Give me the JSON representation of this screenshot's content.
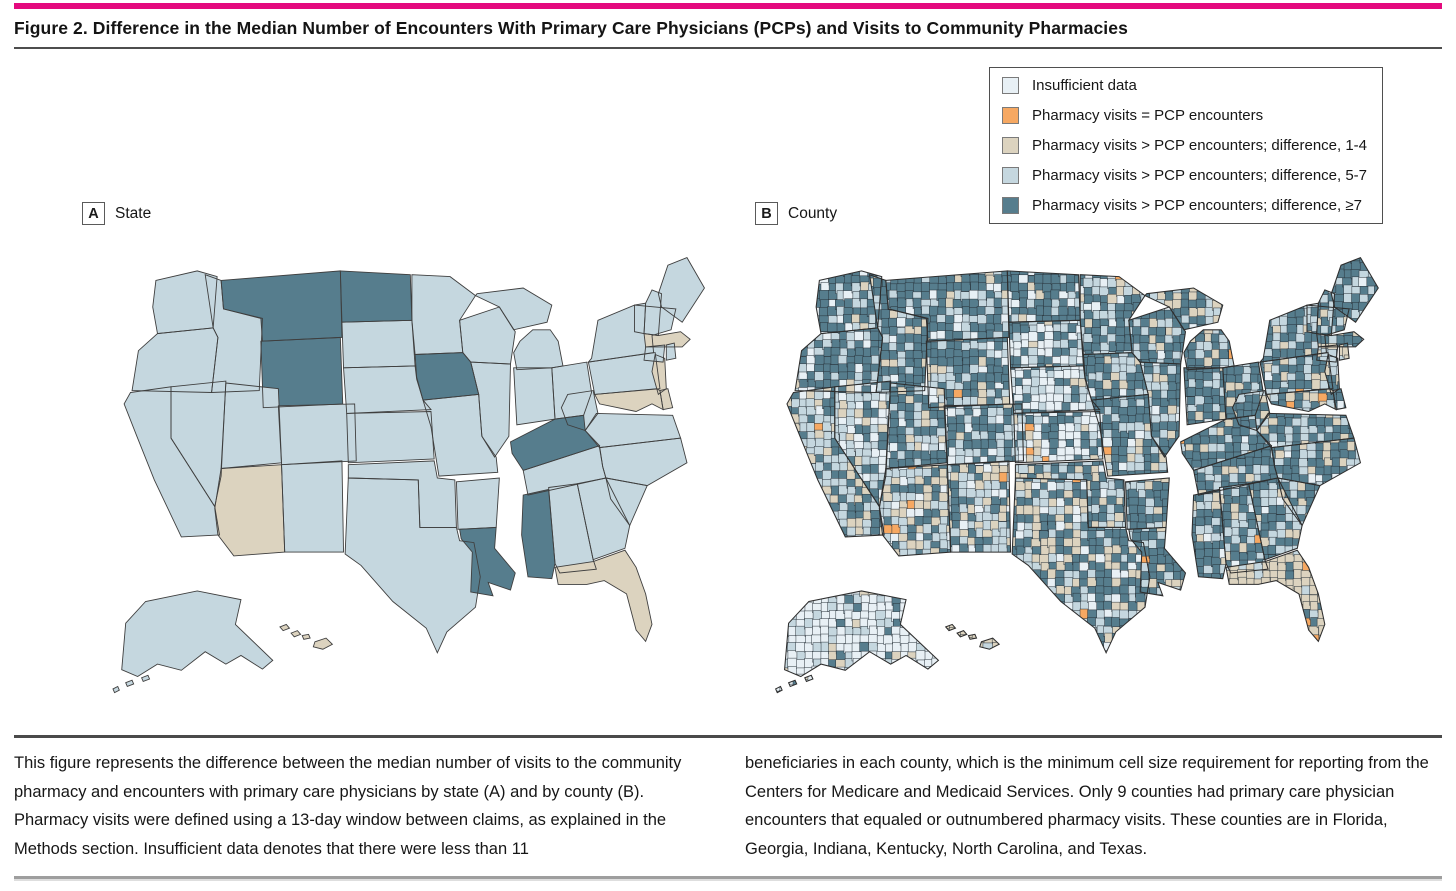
{
  "figure": {
    "title": "Figure 2. Difference in the Median Number of Encounters With Primary Care Physicians (PCPs) and Visits to Community Pharmacies",
    "accent_color": "#e40a7e"
  },
  "legend": {
    "items": [
      {
        "key": "insufficient",
        "label": "Insufficient data",
        "color": "#e8f0f5"
      },
      {
        "key": "equal",
        "label": "Pharmacy visits = PCP encounters",
        "color": "#f6a862"
      },
      {
        "key": "diff_1_4",
        "label": "Pharmacy visits > PCP encounters; difference, 1-4",
        "color": "#dcd3bf"
      },
      {
        "key": "diff_5_7",
        "label": "Pharmacy visits > PCP encounters; difference, 5-7",
        "color": "#c5d7df"
      },
      {
        "key": "diff_ge7",
        "label": "Pharmacy visits > PCP encounters; difference, ≥7",
        "color": "#567d8d"
      }
    ]
  },
  "panels": [
    {
      "id": "A",
      "label": "State"
    },
    {
      "id": "B",
      "label": "County"
    }
  ],
  "map_data": {
    "type": "choropleth",
    "panel_a_unit": "state",
    "panel_b_unit": "county",
    "categories": [
      "insufficient",
      "equal",
      "diff_1_4",
      "diff_5_7",
      "diff_ge7"
    ],
    "state_categories": {
      "diff_ge7": [
        "MT",
        "ND",
        "WY",
        "IA",
        "KY",
        "LA",
        "MS"
      ],
      "diff_1_4": [
        "AZ",
        "MA",
        "NJ",
        "MD",
        "DE",
        "FL",
        "HI"
      ],
      "diff_5_7": [
        "WA",
        "OR",
        "CA",
        "NV",
        "ID",
        "UT",
        "CO",
        "NM",
        "SD",
        "NE",
        "KS",
        "OK",
        "TX",
        "MN",
        "WI",
        "MI",
        "IL",
        "IN",
        "OH",
        "MO",
        "AR",
        "TN",
        "AL",
        "GA",
        "SC",
        "NC",
        "VA",
        "WV",
        "PA",
        "NY",
        "VT",
        "NH",
        "ME",
        "CT",
        "RI",
        "AK"
      ]
    }
  },
  "caption": {
    "left": "This figure represents the difference between the median number of visits to the community pharmacy and encounters with primary care physicians by state (A) and by county (B). Pharmacy visits were defined using a 13-day window between claims, as explained in the Methods section. Insufficient data denotes that there were less than 11",
    "right": "beneficiaries in each county, which is the minimum cell size requirement for reporting from the Centers for Medicare and Medicaid Services. Only 9 counties had primary care physician encounters that equaled or outnumbered pharmacy visits. These counties are in Florida, Georgia, Indiana, Kentucky, North Carolina, and Texas."
  }
}
